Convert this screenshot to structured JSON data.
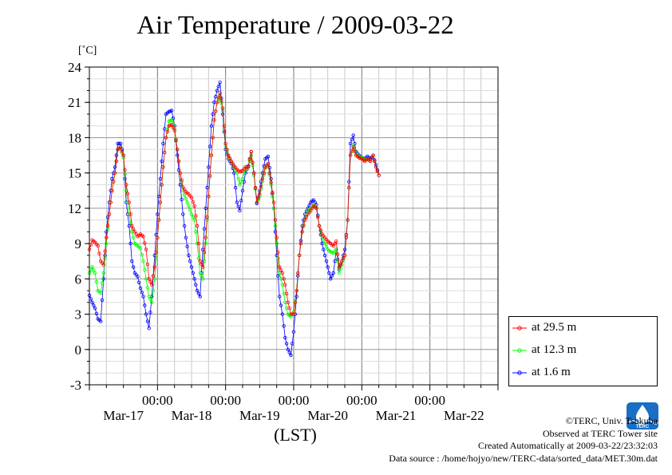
{
  "header": {
    "title": "Air Temperature / 2009-03-22",
    "unit": "[˚C]"
  },
  "legend": [
    {
      "label": "at 29.5 m",
      "color": "#ff0000"
    },
    {
      "label": "at 12.3 m",
      "color": "#00ff00"
    },
    {
      "label": "at 1.6 m",
      "color": "#0000ff"
    }
  ],
  "footer": {
    "xlabel": "(LST)",
    "copyright": "©TERC, Univ. Tsukuba",
    "observed": "Observed at TERC Tower site",
    "created": "Created Automatically at 2009-03-22/23:32:03",
    "source": "Data source : /home/hojyo/new/TERC-data/sorted_data/MET.30m.dat"
  },
  "logo": {
    "icon": "terc-logo-icon",
    "text": "TERC"
  },
  "chart_data": {
    "type": "line",
    "title": "Air Temperature / 2009-03-22",
    "ylabel": "[˚C]",
    "xlabel": "(LST)",
    "xlim": [
      -24,
      120
    ],
    "ylim": [
      -3,
      24
    ],
    "yticks": [
      -3,
      0,
      3,
      6,
      9,
      12,
      15,
      18,
      21,
      24
    ],
    "xticks": [
      {
        "hour": 0,
        "time": "00:00",
        "date": "Mar-17"
      },
      {
        "hour": 24,
        "time": "00:00",
        "date": "Mar-18"
      },
      {
        "hour": 48,
        "time": "00:00",
        "date": "Mar-19"
      },
      {
        "hour": 72,
        "time": "00:00",
        "date": "Mar-20"
      },
      {
        "hour": 96,
        "time": "00:00",
        "date": "Mar-21"
      },
      {
        "hour": 120,
        "time": "",
        "date": "Mar-22"
      }
    ],
    "grid": true,
    "legend_position": "right, outside, bottom",
    "series": [
      {
        "name": "at 29.5 m",
        "color": "#ff0000",
        "points": [
          [
            -24,
            8.5
          ],
          [
            -23,
            9.3
          ],
          [
            -22,
            9.1
          ],
          [
            -21,
            8.8
          ],
          [
            -20,
            7.5
          ],
          [
            -19,
            7.2
          ],
          [
            -18,
            9.5
          ],
          [
            -17,
            11.5
          ],
          [
            -16,
            13.5
          ],
          [
            -15,
            15.0
          ],
          [
            -14,
            17.0
          ],
          [
            -13,
            17.2
          ],
          [
            -12,
            16.5
          ],
          [
            -11,
            14.0
          ],
          [
            -10,
            12.5
          ],
          [
            -9,
            10.5
          ],
          [
            -8,
            10.0
          ],
          [
            -7,
            9.6
          ],
          [
            -6,
            9.8
          ],
          [
            -5,
            9.6
          ],
          [
            -4,
            8.5
          ],
          [
            -3,
            6.0
          ],
          [
            -2,
            5.5
          ],
          [
            -1,
            7.0
          ],
          [
            0,
            9.5
          ],
          [
            1,
            12.5
          ],
          [
            2,
            15.5
          ],
          [
            3,
            18.0
          ],
          [
            4,
            19.0
          ],
          [
            5,
            19.1
          ],
          [
            6,
            18.6
          ],
          [
            7,
            17.0
          ],
          [
            8,
            15.0
          ],
          [
            9,
            13.8
          ],
          [
            10,
            13.4
          ],
          [
            11,
            13.2
          ],
          [
            12,
            12.9
          ],
          [
            13,
            12.2
          ],
          [
            14,
            10.5
          ],
          [
            15,
            7.5
          ],
          [
            16,
            7.0
          ],
          [
            17,
            9.5
          ],
          [
            18,
            13.0
          ],
          [
            19,
            16.5
          ],
          [
            20,
            19.5
          ],
          [
            21,
            21.0
          ],
          [
            22,
            21.8
          ],
          [
            23,
            20.5
          ],
          [
            24,
            17.5
          ],
          [
            25,
            16.5
          ],
          [
            26,
            16.0
          ],
          [
            27,
            15.6
          ],
          [
            28,
            15.3
          ],
          [
            29,
            15.1
          ],
          [
            30,
            15.2
          ],
          [
            31,
            15.5
          ],
          [
            32,
            15.5
          ],
          [
            33,
            16.8
          ],
          [
            34,
            15.0
          ],
          [
            35,
            12.5
          ],
          [
            36,
            13.2
          ],
          [
            37,
            14.5
          ],
          [
            38,
            15.5
          ],
          [
            39,
            15.8
          ],
          [
            40,
            14.2
          ],
          [
            41,
            12.5
          ],
          [
            42,
            9.5
          ],
          [
            43,
            7.0
          ],
          [
            44,
            6.5
          ],
          [
            45,
            5.5
          ],
          [
            46,
            4.0
          ],
          [
            47,
            3.0
          ],
          [
            48,
            3.0
          ],
          [
            49,
            5.0
          ],
          [
            50,
            8.0
          ],
          [
            51,
            10.0
          ],
          [
            52,
            11.0
          ],
          [
            53,
            11.5
          ],
          [
            54,
            11.8
          ],
          [
            55,
            12.2
          ],
          [
            56,
            12.0
          ],
          [
            57,
            10.5
          ],
          [
            58,
            9.8
          ],
          [
            59,
            9.5
          ],
          [
            60,
            9.2
          ],
          [
            61,
            9.0
          ],
          [
            62,
            8.8
          ],
          [
            63,
            9.2
          ],
          [
            64,
            7.0
          ],
          [
            65,
            7.5
          ],
          [
            66,
            8.0
          ],
          [
            67,
            11.0
          ],
          [
            68,
            16.5
          ],
          [
            69,
            17.2
          ],
          [
            70,
            16.5
          ],
          [
            71,
            16.3
          ],
          [
            72,
            16.2
          ],
          [
            73,
            16.0
          ],
          [
            74,
            16.2
          ],
          [
            75,
            16.0
          ],
          [
            76,
            16.5
          ],
          [
            77,
            15.5
          ],
          [
            78,
            14.8
          ]
        ]
      },
      {
        "name": "at 12.3 m",
        "color": "#00ff00",
        "points": [
          [
            -24,
            6.5
          ],
          [
            -23,
            7.0
          ],
          [
            -22,
            6.5
          ],
          [
            -21,
            5.0
          ],
          [
            -20,
            4.8
          ],
          [
            -19,
            6.5
          ],
          [
            -18,
            9.0
          ],
          [
            -17,
            11.5
          ],
          [
            -16,
            13.5
          ],
          [
            -15,
            15.0
          ],
          [
            -14,
            17.0
          ],
          [
            -13,
            17.1
          ],
          [
            -12,
            16.3
          ],
          [
            -11,
            13.5
          ],
          [
            -10,
            11.5
          ],
          [
            -9,
            10.0
          ],
          [
            -8,
            9.0
          ],
          [
            -7,
            8.8
          ],
          [
            -6,
            8.6
          ],
          [
            -5,
            7.5
          ],
          [
            -4,
            6.0
          ],
          [
            -3,
            4.5
          ],
          [
            -2,
            4.0
          ],
          [
            -1,
            6.0
          ],
          [
            0,
            9.5
          ],
          [
            1,
            12.5
          ],
          [
            2,
            15.5
          ],
          [
            3,
            18.0
          ],
          [
            4,
            19.4
          ],
          [
            5,
            19.5
          ],
          [
            6,
            18.8
          ],
          [
            7,
            17.0
          ],
          [
            8,
            15.0
          ],
          [
            9,
            13.5
          ],
          [
            10,
            12.8
          ],
          [
            11,
            12.2
          ],
          [
            12,
            11.5
          ],
          [
            13,
            11.0
          ],
          [
            14,
            9.0
          ],
          [
            15,
            6.5
          ],
          [
            16,
            6.0
          ],
          [
            17,
            9.0
          ],
          [
            18,
            13.0
          ],
          [
            19,
            16.5
          ],
          [
            20,
            19.5
          ],
          [
            21,
            21.0
          ],
          [
            22,
            21.6
          ],
          [
            23,
            20.3
          ],
          [
            24,
            17.3
          ],
          [
            25,
            16.4
          ],
          [
            26,
            16.0
          ],
          [
            27,
            15.5
          ],
          [
            28,
            15.0
          ],
          [
            29,
            14.0
          ],
          [
            30,
            14.5
          ],
          [
            31,
            15.3
          ],
          [
            32,
            15.5
          ],
          [
            33,
            16.5
          ],
          [
            34,
            14.8
          ],
          [
            35,
            12.5
          ],
          [
            36,
            13.0
          ],
          [
            37,
            14.3
          ],
          [
            38,
            15.4
          ],
          [
            39,
            15.7
          ],
          [
            40,
            14.0
          ],
          [
            41,
            12.0
          ],
          [
            42,
            9.0
          ],
          [
            43,
            6.5
          ],
          [
            44,
            5.5
          ],
          [
            45,
            4.0
          ],
          [
            46,
            3.0
          ],
          [
            47,
            2.8
          ],
          [
            48,
            3.2
          ],
          [
            49,
            5.0
          ],
          [
            50,
            8.0
          ],
          [
            51,
            10.0
          ],
          [
            52,
            11.2
          ],
          [
            53,
            11.8
          ],
          [
            54,
            12.0
          ],
          [
            55,
            12.3
          ],
          [
            56,
            12.1
          ],
          [
            57,
            10.5
          ],
          [
            58,
            9.6
          ],
          [
            59,
            9.0
          ],
          [
            60,
            8.5
          ],
          [
            61,
            8.3
          ],
          [
            62,
            8.2
          ],
          [
            63,
            8.5
          ],
          [
            64,
            6.5
          ],
          [
            65,
            7.2
          ],
          [
            66,
            8.0
          ],
          [
            67,
            11.0
          ],
          [
            68,
            16.5
          ],
          [
            69,
            17.3
          ],
          [
            70,
            16.6
          ],
          [
            71,
            16.4
          ],
          [
            72,
            16.3
          ],
          [
            73,
            16.1
          ],
          [
            74,
            16.2
          ],
          [
            75,
            16.0
          ],
          [
            76,
            16.5
          ],
          [
            77,
            15.5
          ],
          [
            78,
            14.8
          ]
        ]
      },
      {
        "name": "at 1.6 m",
        "color": "#0000ff",
        "points": [
          [
            -24,
            4.6
          ],
          [
            -23,
            4.0
          ],
          [
            -22,
            3.5
          ],
          [
            -21,
            2.6
          ],
          [
            -20,
            2.4
          ],
          [
            -19,
            6.0
          ],
          [
            -18,
            10.0
          ],
          [
            -17,
            12.5
          ],
          [
            -16,
            14.5
          ],
          [
            -15,
            15.5
          ],
          [
            -14,
            17.5
          ],
          [
            -13,
            17.5
          ],
          [
            -12,
            16.5
          ],
          [
            -11,
            12.5
          ],
          [
            -10,
            10.5
          ],
          [
            -9,
            7.5
          ],
          [
            -8,
            6.5
          ],
          [
            -7,
            6.2
          ],
          [
            -6,
            5.2
          ],
          [
            -5,
            4.5
          ],
          [
            -4,
            3.0
          ],
          [
            -3,
            1.8
          ],
          [
            -2,
            4.5
          ],
          [
            -1,
            8.0
          ],
          [
            0,
            11.5
          ],
          [
            1,
            14.5
          ],
          [
            2,
            17.5
          ],
          [
            3,
            20.0
          ],
          [
            4,
            20.2
          ],
          [
            5,
            20.3
          ],
          [
            6,
            19.0
          ],
          [
            7,
            16.5
          ],
          [
            8,
            14.0
          ],
          [
            9,
            11.5
          ],
          [
            10,
            9.5
          ],
          [
            11,
            8.0
          ],
          [
            12,
            7.0
          ],
          [
            13,
            6.0
          ],
          [
            14,
            5.0
          ],
          [
            15,
            4.5
          ],
          [
            16,
            8.5
          ],
          [
            17,
            12.0
          ],
          [
            18,
            15.5
          ],
          [
            19,
            19.0
          ],
          [
            20,
            21.0
          ],
          [
            21,
            22.0
          ],
          [
            22,
            22.7
          ],
          [
            23,
            20.0
          ],
          [
            24,
            17.0
          ],
          [
            25,
            16.2
          ],
          [
            26,
            15.8
          ],
          [
            27,
            15.0
          ],
          [
            28,
            12.5
          ],
          [
            29,
            11.8
          ],
          [
            30,
            13.5
          ],
          [
            31,
            15.0
          ],
          [
            32,
            15.6
          ],
          [
            33,
            16.8
          ],
          [
            34,
            15.0
          ],
          [
            35,
            12.4
          ],
          [
            36,
            13.5
          ],
          [
            37,
            15.0
          ],
          [
            38,
            16.2
          ],
          [
            39,
            16.4
          ],
          [
            40,
            14.5
          ],
          [
            41,
            12.0
          ],
          [
            42,
            8.0
          ],
          [
            43,
            4.5
          ],
          [
            44,
            3.0
          ],
          [
            45,
            1.0
          ],
          [
            46,
            0.0
          ],
          [
            47,
            -0.5
          ],
          [
            48,
            1.5
          ],
          [
            49,
            4.5
          ],
          [
            50,
            8.0
          ],
          [
            51,
            10.5
          ],
          [
            52,
            11.5
          ],
          [
            53,
            12.0
          ],
          [
            54,
            12.5
          ],
          [
            55,
            12.7
          ],
          [
            56,
            12.3
          ],
          [
            57,
            10.5
          ],
          [
            58,
            9.0
          ],
          [
            59,
            8.0
          ],
          [
            60,
            7.0
          ],
          [
            61,
            6.0
          ],
          [
            62,
            6.5
          ],
          [
            63,
            8.5
          ],
          [
            64,
            6.8
          ],
          [
            65,
            7.5
          ],
          [
            66,
            8.5
          ],
          [
            67,
            11.0
          ],
          [
            68,
            17.5
          ],
          [
            69,
            18.2
          ],
          [
            70,
            16.8
          ],
          [
            71,
            16.5
          ],
          [
            72,
            16.3
          ],
          [
            73,
            16.2
          ],
          [
            74,
            16.4
          ],
          [
            75,
            16.2
          ],
          [
            76,
            16.5
          ],
          [
            77,
            15.7
          ],
          [
            78,
            14.8
          ]
        ]
      }
    ]
  }
}
